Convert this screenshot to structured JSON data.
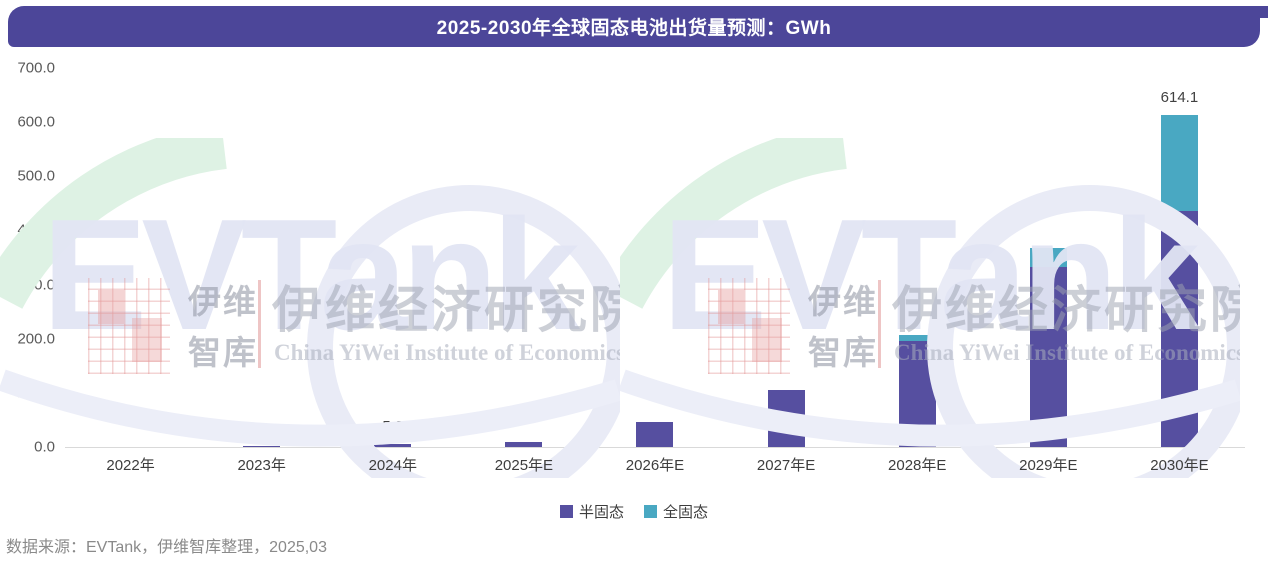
{
  "title": "2025-2030年全球固态电池出货量预测：GWh",
  "footer": "数据来源：EVTank，伊维智库整理，2025,03",
  "colors": {
    "banner": "#4C4699",
    "semi_solid": "#564FA0",
    "all_solid": "#49A8C2",
    "axis_text": "#595959",
    "baseline": "#D9D9D9"
  },
  "legend": [
    {
      "label": "半固态",
      "color": "#564FA0"
    },
    {
      "label": "全固态",
      "color": "#49A8C2"
    }
  ],
  "chart_data": {
    "type": "bar",
    "stacked": true,
    "title": "2025-2030年全球固态电池出货量预测：GWh",
    "unit": "GWh",
    "categories": [
      "2022年",
      "2023年",
      "2024年",
      "2025年E",
      "2026年E",
      "2027年E",
      "2028年E",
      "2029年E",
      "2030年E"
    ],
    "series": [
      {
        "name": "半固态",
        "color": "#564FA0",
        "values": [
          0,
          1.0,
          5.3,
          10.0,
          46.0,
          105.0,
          196.0,
          332.0,
          436.0
        ]
      },
      {
        "name": "全固态",
        "color": "#49A8C2",
        "values": [
          0,
          0,
          0,
          0,
          0,
          0,
          11.0,
          35.0,
          178.1
        ]
      }
    ],
    "point_labels": [
      "",
      "",
      "5.3",
      "",
      "",
      "",
      "",
      "",
      "614.1"
    ],
    "ylim": [
      0,
      700
    ],
    "yticks": [
      "0.0",
      "100.0",
      "200.0",
      "300.0",
      "400.0",
      "500.0",
      "600.0",
      "700.0"
    ],
    "grid": false,
    "legend_position": "bottom"
  },
  "watermark": {
    "evtank": "EVTank",
    "logo_line1": "伊维",
    "logo_line2": "智库",
    "institute_cn": "伊维经济研究院",
    "institute_en": "China YiWei Institute of Economics"
  }
}
